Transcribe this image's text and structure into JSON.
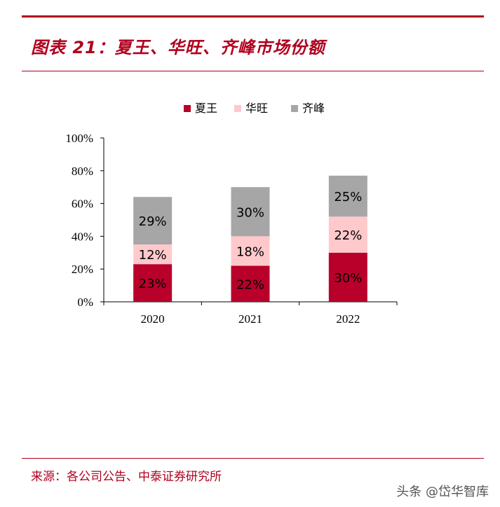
{
  "header": {
    "title": "图表 21：夏王、华旺、齐峰市场份额"
  },
  "footer": {
    "source": "来源：各公司公告、中泰证券研究所",
    "watermark": "头条 @岱华智库"
  },
  "chart_data": {
    "type": "bar",
    "stacked": true,
    "categories": [
      "2020",
      "2021",
      "2022"
    ],
    "series": [
      {
        "name": "夏王",
        "color": "#b8002a",
        "values": [
          23,
          22,
          30
        ]
      },
      {
        "name": "华旺",
        "color": "#ffc9cc",
        "values": [
          12,
          18,
          22
        ]
      },
      {
        "name": "齐峰",
        "color": "#a6a6a6",
        "values": [
          29,
          30,
          25
        ]
      }
    ],
    "data_labels": [
      [
        "23%",
        "22%",
        "30%"
      ],
      [
        "12%",
        "18%",
        "22%"
      ],
      [
        "29%",
        "30%",
        "25%"
      ]
    ],
    "y_ticks": [
      "0%",
      "20%",
      "40%",
      "60%",
      "80%",
      "100%"
    ],
    "ylim": [
      0,
      100
    ],
    "legend_position": "top"
  }
}
